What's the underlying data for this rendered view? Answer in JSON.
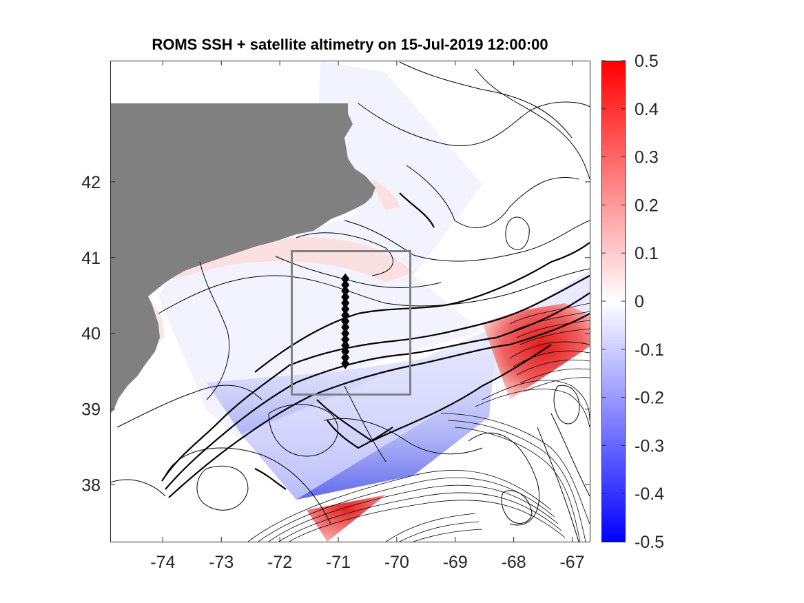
{
  "chart_data": {
    "type": "heatmap",
    "title": "ROMS SSH + satellite altimetry on 15-Jul-2019 12:00:00",
    "xlabel": "",
    "ylabel": "",
    "xlim": [
      -74.9,
      -66.7
    ],
    "ylim": [
      37.25,
      43.6
    ],
    "x_ticks": [
      -74,
      -73,
      -72,
      -71,
      -70,
      -69,
      -68,
      -67
    ],
    "x_tick_labels": [
      "-74",
      "-73",
      "-72",
      "-71",
      "-70",
      "-69",
      "-68",
      "-67"
    ],
    "y_ticks": [
      38,
      39,
      40,
      41,
      42
    ],
    "y_tick_labels": [
      "38",
      "39",
      "40",
      "41",
      "42"
    ],
    "colorbar": {
      "clim": [
        -0.5,
        0.5
      ],
      "ticks": [
        0.5,
        0.4,
        0.3,
        0.2,
        0.1,
        0,
        -0.1,
        -0.2,
        -0.3,
        -0.4,
        -0.5
      ],
      "tick_labels": [
        "0.5",
        "0.4",
        "0.3",
        "0.2",
        "0.1",
        "0",
        "-0.1",
        "-0.2",
        "-0.3",
        "-0.4",
        "-0.5"
      ],
      "colormap": "blue-white-red",
      "low_color": "#0000ff",
      "mid_color": "#ffffff",
      "high_color": "#ff0000"
    },
    "land_color": "#808080",
    "box": {
      "lon": [
        -71.8,
        -69.8
      ],
      "lat": [
        39.25,
        41.1
      ],
      "color": "#808080"
    },
    "transect": {
      "lon": -70.88,
      "lat": [
        39.6,
        39.68,
        39.76,
        39.84,
        39.92,
        40.0,
        40.08,
        40.16,
        40.24,
        40.32,
        40.4,
        40.48,
        40.56,
        40.64,
        40.72
      ]
    },
    "grid": false
  }
}
